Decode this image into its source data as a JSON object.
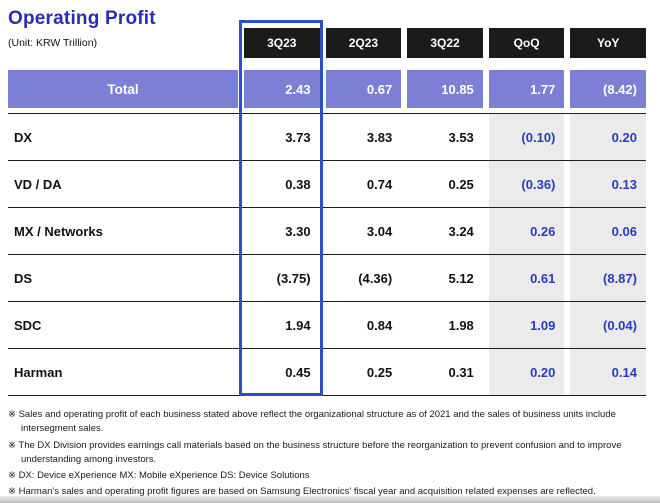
{
  "chart_data": {
    "type": "table",
    "title": "Operating Profit",
    "unit_label": "(Unit: KRW Trillion)",
    "columns": [
      "3Q23",
      "2Q23",
      "3Q22",
      "QoQ",
      "YoY"
    ],
    "highlight_column": "3Q23",
    "rows": [
      {
        "label": "Total",
        "is_total": true,
        "values": [
          "2.43",
          "0.67",
          "10.85",
          "1.77",
          "(8.42)"
        ]
      },
      {
        "label": "DX",
        "is_total": false,
        "values": [
          "3.73",
          "3.83",
          "3.53",
          "(0.10)",
          "0.20"
        ]
      },
      {
        "label": "VD / DA",
        "is_total": false,
        "values": [
          "0.38",
          "0.74",
          "0.25",
          "(0.36)",
          "0.13"
        ]
      },
      {
        "label": "MX / Networks",
        "is_total": false,
        "values": [
          "3.30",
          "3.04",
          "3.24",
          "0.26",
          "0.06"
        ]
      },
      {
        "label": "DS",
        "is_total": false,
        "values": [
          "(3.75)",
          "(4.36)",
          "5.12",
          "0.61",
          "(8.87)"
        ]
      },
      {
        "label": "SDC",
        "is_total": false,
        "values": [
          "1.94",
          "0.84",
          "1.98",
          "1.09",
          "(0.04)"
        ]
      },
      {
        "label": "Harman",
        "is_total": false,
        "values": [
          "0.45",
          "0.25",
          "0.31",
          "0.20",
          "0.14"
        ]
      }
    ]
  },
  "footnotes": [
    "※ Sales and operating profit of each business stated above reflect the organizational structure  as of 2021 and the sales of business units include intersegment sales.",
    "※ The DX Division provides earnings call materials based on the business structure before the reorganization to prevent confusion and to improve understanding among investors.",
    "※ DX: Device eXperience MX: Mobile eXperience DS: Device Solutions",
    "※ Harman's sales and operating profit figures are based on Samsung Electronics' fiscal year and acquisition related expenses are reflected."
  ],
  "colors": {
    "title_color": "#2b2db2",
    "header_bg": "#1b1b1b",
    "total_bg": "#7c80d4",
    "muted_cell_bg": "#ebebeb",
    "accent_text": "#2b3bbd",
    "highlight_border": "#2b4fc4",
    "row_line": "#1f1f1f"
  }
}
